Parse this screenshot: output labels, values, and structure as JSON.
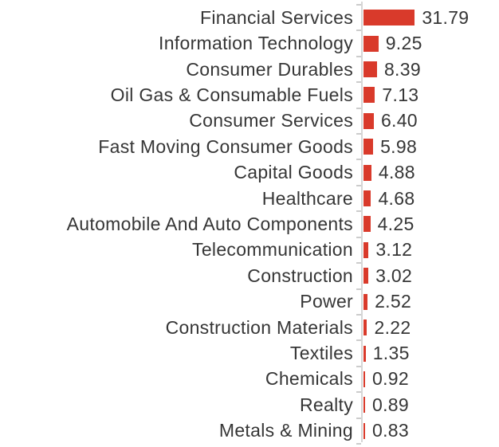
{
  "chart_data": {
    "type": "bar",
    "orientation": "horizontal",
    "title": "",
    "xlabel": "",
    "ylabel": "",
    "grid": false,
    "legend": "none",
    "xlim": [
      0,
      84
    ],
    "categories": [
      "Financial Services",
      "Information Technology",
      "Consumer Durables",
      "Oil Gas & Consumable Fuels",
      "Consumer Services",
      "Fast Moving Consumer Goods",
      "Capital Goods",
      "Healthcare",
      "Automobile And Auto Components",
      "Telecommunication",
      "Construction",
      "Power",
      "Construction Materials",
      "Textiles",
      "Chemicals",
      "Realty",
      "Metals & Mining"
    ],
    "values": [
      31.79,
      9.25,
      8.39,
      7.13,
      6.4,
      5.98,
      4.88,
      4.68,
      4.25,
      3.12,
      3.02,
      2.52,
      2.22,
      1.35,
      0.92,
      0.89,
      0.83
    ],
    "value_labels": [
      "31.79",
      "9.25",
      "8.39",
      "7.13",
      "6.40",
      "5.98",
      "4.88",
      "4.68",
      "4.25",
      "3.12",
      "3.02",
      "2.52",
      "2.22",
      "1.35",
      "0.92",
      "0.89",
      "0.83"
    ],
    "bar_color": "#d93a2b",
    "axis_color": "#d6d6d6",
    "tick_color": "#cccccc",
    "text_color": "#363636"
  }
}
